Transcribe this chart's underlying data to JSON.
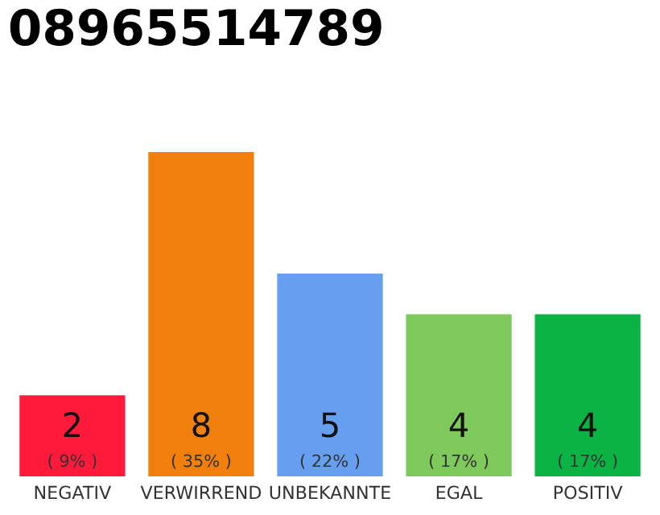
{
  "chart_data": {
    "type": "bar",
    "title": "08965514789",
    "categories": [
      "NEGATIV",
      "VERWIRREND",
      "UNBEKANNTE",
      "EGAL",
      "POSITIV"
    ],
    "values": [
      2,
      8,
      5,
      4,
      4
    ],
    "colors": [
      "#ff1a3c",
      "#f07f0c",
      "#669ff0",
      "#7ec95c",
      "#0bb345"
    ],
    "value_labels": [
      "2\n( 9% )",
      "8\n( 35% )",
      "5\n( 22% )",
      "4\n( 17% )",
      "4\n( 17% )"
    ],
    "grid": false,
    "legend": false
  }
}
